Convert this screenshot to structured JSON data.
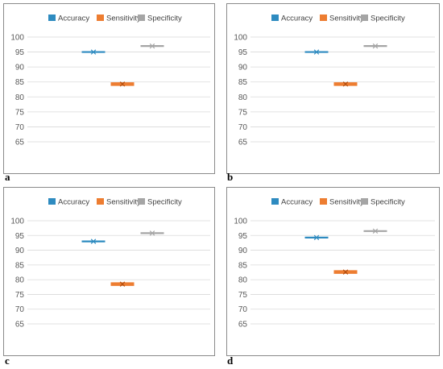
{
  "colors": {
    "accuracy": "#2e8bc0",
    "sensitivity": "#ed7d31",
    "specificity": "#a5a5a5"
  },
  "chart_data": [
    {
      "panel_label": "a",
      "type": "scatter",
      "legend_position": "top",
      "grid": true,
      "ylim": [
        65,
        100
      ],
      "yticks": [
        65,
        70,
        75,
        80,
        85,
        90,
        95,
        100
      ],
      "series": [
        {
          "name": "Accuracy",
          "value": 95.0,
          "color": "#2e8bc0"
        },
        {
          "name": "Sensitivity",
          "value": 84.3,
          "color": "#ed7d31"
        },
        {
          "name": "Specificity",
          "value": 97.0,
          "color": "#a5a5a5"
        }
      ]
    },
    {
      "panel_label": "b",
      "type": "scatter",
      "legend_position": "top",
      "grid": true,
      "ylim": [
        65,
        100
      ],
      "yticks": [
        65,
        70,
        75,
        80,
        85,
        90,
        95,
        100
      ],
      "series": [
        {
          "name": "Accuracy",
          "value": 95.0,
          "color": "#2e8bc0"
        },
        {
          "name": "Sensitivity",
          "value": 84.3,
          "color": "#ed7d31"
        },
        {
          "name": "Specificity",
          "value": 97.0,
          "color": "#a5a5a5"
        }
      ]
    },
    {
      "panel_label": "c",
      "type": "scatter",
      "legend_position": "top",
      "grid": true,
      "ylim": [
        65,
        100
      ],
      "yticks": [
        65,
        70,
        75,
        80,
        85,
        90,
        95,
        100
      ],
      "series": [
        {
          "name": "Accuracy",
          "value": 93.0,
          "color": "#2e8bc0"
        },
        {
          "name": "Sensitivity",
          "value": 78.5,
          "color": "#ed7d31"
        },
        {
          "name": "Specificity",
          "value": 95.8,
          "color": "#a5a5a5"
        }
      ]
    },
    {
      "panel_label": "d",
      "type": "scatter",
      "legend_position": "top",
      "grid": true,
      "ylim": [
        65,
        100
      ],
      "yticks": [
        65,
        70,
        75,
        80,
        85,
        90,
        95,
        100
      ],
      "series": [
        {
          "name": "Accuracy",
          "value": 94.3,
          "color": "#2e8bc0"
        },
        {
          "name": "Sensitivity",
          "value": 82.6,
          "color": "#ed7d31"
        },
        {
          "name": "Specificity",
          "value": 96.5,
          "color": "#a5a5a5"
        }
      ]
    }
  ]
}
